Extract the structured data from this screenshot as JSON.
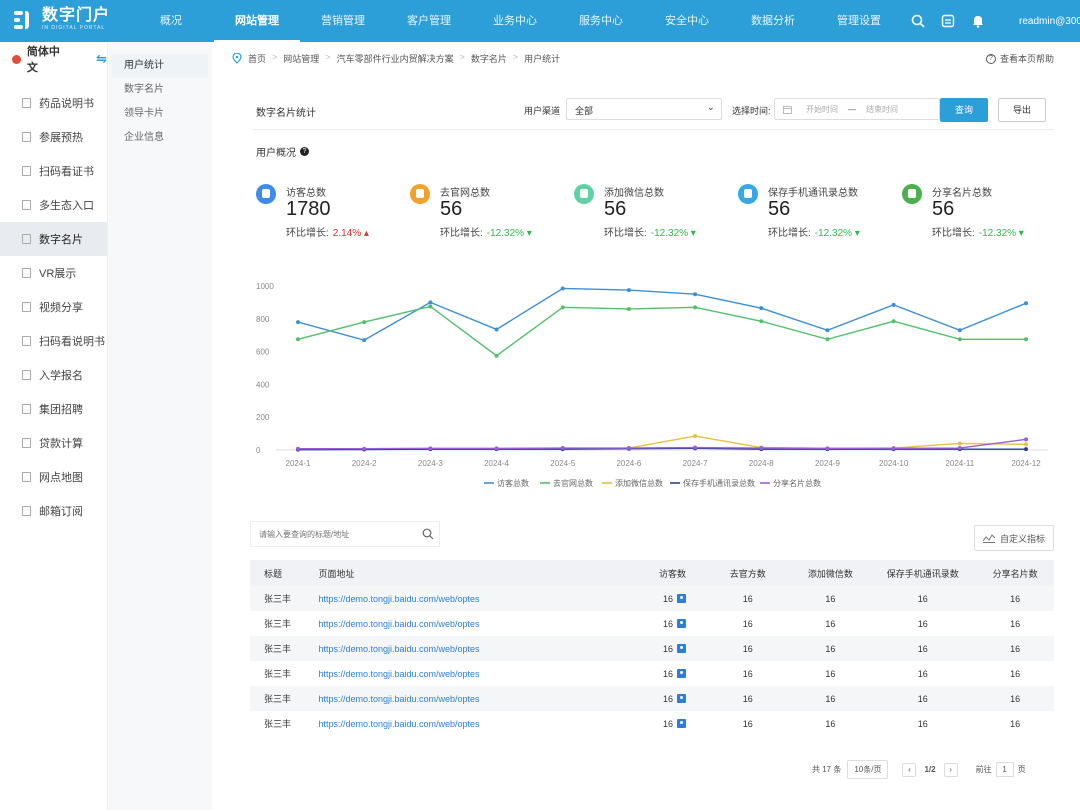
{
  "brand": {
    "name": "数字门户",
    "subtitle": "IN DIGITAL PORTAL"
  },
  "topnav": {
    "items": [
      "概况",
      "网站管理",
      "营销管理",
      "客户管理",
      "业务中心",
      "服务中心",
      "安全中心",
      "数据分析",
      "管理设置"
    ],
    "active_index": 1,
    "user": "readmin@300"
  },
  "sidebar": {
    "language": "简体中文",
    "items": [
      "药品说明书",
      "参展预热",
      "扫码看证书",
      "多生态入口",
      "数字名片",
      "VR展示",
      "视频分享",
      "扫码看说明书",
      "入学报名",
      "集团招聘",
      "贷款计算",
      "网点地图",
      "邮箱订阅"
    ],
    "active_index": 4
  },
  "subnav": {
    "items": [
      "用户统计",
      "数字名片",
      "领导卡片",
      "企业信息"
    ],
    "active_index": 0
  },
  "breadcrumb": [
    "首页",
    "网站管理",
    "汽车零部件行业内贸解决方案",
    "数字名片",
    "用户统计"
  ],
  "help_label": "查看本页帮助",
  "filter": {
    "title": "数字名片统计",
    "channel_label": "用户渠道",
    "channel_value": "全部",
    "time_label": "选择时间:",
    "start_placeholder": "开始时间",
    "end_placeholder": "结束时间",
    "query_label": "查询",
    "export_label": "导出"
  },
  "overview": {
    "title": "用户概况",
    "growth_label": "环比增长:",
    "stats": [
      {
        "label": "访客总数",
        "value": "1780",
        "growth": "2.14%",
        "trend": "up",
        "color": "#3d8bea"
      },
      {
        "label": "去官网总数",
        "value": "56",
        "growth": "-12.32%",
        "trend": "down",
        "color": "#f0a22c"
      },
      {
        "label": "添加微信总数",
        "value": "56",
        "growth": "-12.32%",
        "trend": "down",
        "color": "#5fd1a6"
      },
      {
        "label": "保存手机通讯录总数",
        "value": "56",
        "growth": "-12.32%",
        "trend": "down",
        "color": "#36a8e8"
      },
      {
        "label": "分享名片总数",
        "value": "56",
        "growth": "-12.32%",
        "trend": "down",
        "color": "#4caf50"
      }
    ]
  },
  "chart_data": {
    "type": "line",
    "x": [
      "2024-1",
      "2024-2",
      "2024-3",
      "2024-4",
      "2024-5",
      "2024-6",
      "2024-7",
      "2024-8",
      "2024-9",
      "2024-10",
      "2024-11",
      "2024-12"
    ],
    "ylim": [
      0,
      1000
    ],
    "yticks": [
      0,
      200,
      400,
      600,
      800,
      1000
    ],
    "grid": false,
    "legend": "bottom",
    "series": [
      {
        "name": "访客总数",
        "color": "#3d8fd4",
        "values": [
          780,
          670,
          900,
          735,
          985,
          975,
          950,
          865,
          730,
          885,
          730,
          895
        ]
      },
      {
        "name": "去官网总数",
        "color": "#52c06a",
        "values": [
          675,
          780,
          875,
          575,
          870,
          860,
          870,
          785,
          675,
          785,
          675,
          675
        ]
      },
      {
        "name": "添加微信总数",
        "color": "#e6c23a",
        "values": [
          5,
          5,
          8,
          8,
          10,
          12,
          85,
          15,
          10,
          12,
          40,
          35
        ]
      },
      {
        "name": "保存手机通讯录总数",
        "color": "#2f3f8f",
        "values": [
          2,
          3,
          5,
          5,
          5,
          8,
          10,
          5,
          5,
          5,
          5,
          5
        ]
      },
      {
        "name": "分享名片总数",
        "color": "#9a5fd6",
        "values": [
          8,
          8,
          10,
          10,
          12,
          12,
          15,
          12,
          10,
          10,
          12,
          65
        ]
      }
    ]
  },
  "search": {
    "placeholder": "请输入要查询的标题/地址"
  },
  "custom_metric_label": "自定义指标",
  "table": {
    "headers": [
      "标题",
      "页面地址",
      "访客数",
      "去官方数",
      "添加微信数",
      "保存手机通讯录数",
      "分享名片数"
    ],
    "rows": [
      [
        "张三丰",
        "https://demo.tongji.baidu.com/web/optes",
        "16",
        "16",
        "16",
        "16",
        "16"
      ],
      [
        "张三丰",
        "https://demo.tongji.baidu.com/web/optes",
        "16",
        "16",
        "16",
        "16",
        "16"
      ],
      [
        "张三丰",
        "https://demo.tongji.baidu.com/web/optes",
        "16",
        "16",
        "16",
        "16",
        "16"
      ],
      [
        "张三丰",
        "https://demo.tongji.baidu.com/web/optes",
        "16",
        "16",
        "16",
        "16",
        "16"
      ],
      [
        "张三丰",
        "https://demo.tongji.baidu.com/web/optes",
        "16",
        "16",
        "16",
        "16",
        "16"
      ],
      [
        "张三丰",
        "https://demo.tongji.baidu.com/web/optes",
        "16",
        "16",
        "16",
        "16",
        "16"
      ]
    ]
  },
  "pagination": {
    "total": "共 17 条",
    "page_size": "10条/页",
    "current": "1/2",
    "goto_label": "前往",
    "goto_value": "1",
    "page_unit": "页"
  }
}
